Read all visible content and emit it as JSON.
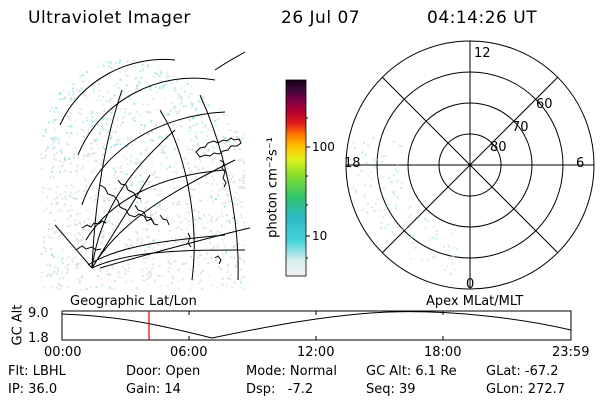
{
  "header": {
    "title": "Ultraviolet Imager",
    "date": "26 Jul 07",
    "time": "04:14:26 UT"
  },
  "colorbar": {
    "label": "photon cm⁻²s⁻¹",
    "ticks": [
      "100",
      "10"
    ]
  },
  "left_panel": {
    "caption": "Geographic Lat/Lon"
  },
  "right_panel": {
    "caption": "Apex MLat/MLT",
    "hour_labels": {
      "top": "12",
      "bottom": "0",
      "left": "18",
      "right": "6"
    },
    "lat_labels": [
      "60",
      "70",
      "80"
    ]
  },
  "timeline": {
    "ylabel": "GC Alt",
    "ytick_top": "9.0",
    "ytick_bottom": "1.8",
    "xticks": [
      "00:00",
      "06:00",
      "12:00",
      "18:00",
      "23:59"
    ],
    "marker_color": "#d40000"
  },
  "footer": {
    "filter": "Flt: LBHL",
    "ip": "IP: 36.0",
    "door": "Door: Open",
    "gain": "Gain: 14",
    "mode": "Mode: Normal",
    "dsp": "Dsp:   -7.2",
    "gc_alt": "GC Alt: 6.1 Re",
    "seq": "Seq: 39",
    "glat": "GLat: -67.2",
    "glon": "GLon: 272.7"
  },
  "colors": {
    "speckle_cyan": "#7fe3ea",
    "speckle_gray": "#cfd8d8"
  }
}
